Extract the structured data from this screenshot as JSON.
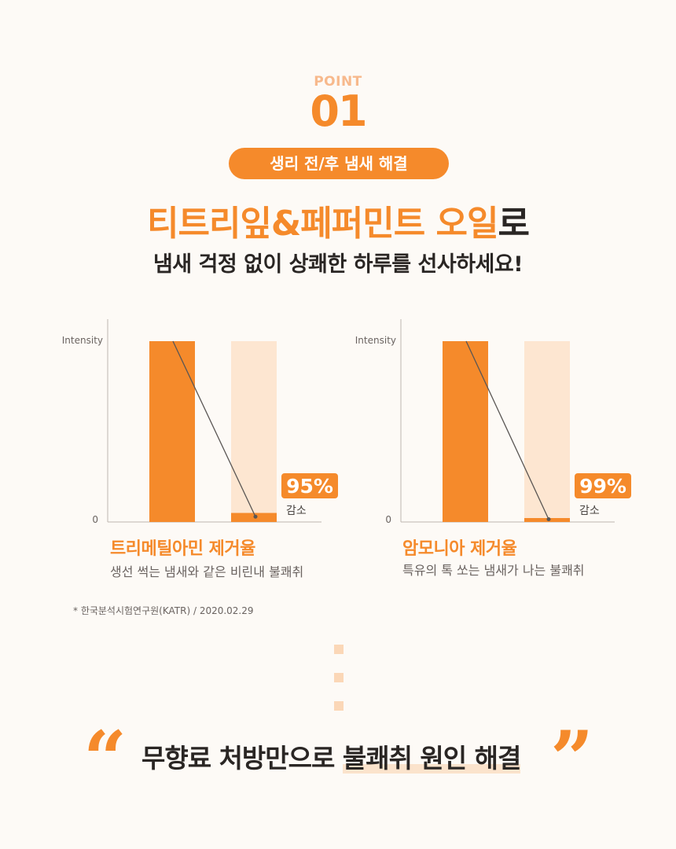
{
  "header": {
    "point_label": "POINT",
    "point_number": "01",
    "pill_text": "생리 전/후 냄새 해결",
    "headline_highlight": "티트리잎&페퍼민트 오일",
    "headline_suffix": "로",
    "subline": "냄새 걱정 없이 상쾌한 하루를 선사하세요!"
  },
  "chart_data": [
    {
      "type": "bar",
      "title": "트리메틸아민 제거율",
      "description": "생선 썩는 냄새와 같은 비린내 불쾌취",
      "ylabel": "Intensity",
      "ytick_zero": "0",
      "values": [
        100,
        5
      ],
      "reduction_label": "95%",
      "reduction_suffix": "감소",
      "colors": {
        "before": "#f58a2b",
        "after": "#f58a2b",
        "after_track": "#fde6d1"
      }
    },
    {
      "type": "bar",
      "title": "암모니아 제거율",
      "description": "특유의 톡 쏘는 냄새가 나는 불쾌취",
      "ylabel": "Intensity",
      "ytick_zero": "0",
      "values": [
        100,
        1
      ],
      "reduction_label": "99%",
      "reduction_suffix": "감소",
      "colors": {
        "before": "#f58a2b",
        "after": "#f58a2b",
        "after_track": "#fde6d1"
      }
    }
  ],
  "footnote": "* 한국분석시험연구원(KATR) / 2020.02.29",
  "closing": {
    "open_quote": "“",
    "text_plain": "무향료 처방만으로 ",
    "text_underlined": "불쾌취 원인 해결",
    "close_quote": "”"
  }
}
